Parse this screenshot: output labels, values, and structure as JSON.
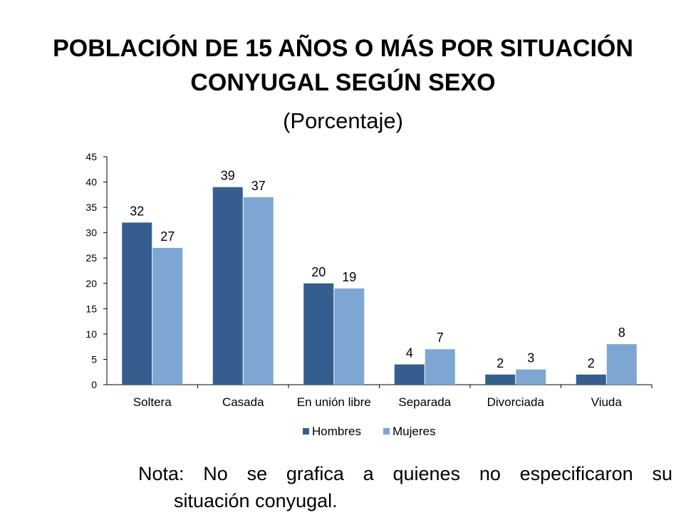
{
  "chart_data": {
    "type": "bar",
    "title_line1": "Población de 15 años o más por situación",
    "title_line2": "conyugal según sexo",
    "subtitle": "(Porcentaje)",
    "categories": [
      "Soltera",
      "Casada",
      "En unión libre",
      "Separada",
      "Divorciada",
      "Viuda"
    ],
    "series": [
      {
        "name": "Hombres",
        "values": [
          32,
          39,
          20,
          4,
          2,
          2
        ],
        "color": "#355E8F"
      },
      {
        "name": "Mujeres",
        "values": [
          27,
          37,
          19,
          7,
          3,
          8
        ],
        "color": "#7EA6D2"
      }
    ],
    "ylim": [
      0,
      45
    ],
    "yticks": [
      0,
      5,
      10,
      15,
      20,
      25,
      30,
      35,
      40,
      45
    ],
    "legend_position": "bottom",
    "grid": false
  },
  "note": {
    "line1": "Nota: No se grafica a quienes no especificaron su",
    "line2": "situación conyugal."
  }
}
